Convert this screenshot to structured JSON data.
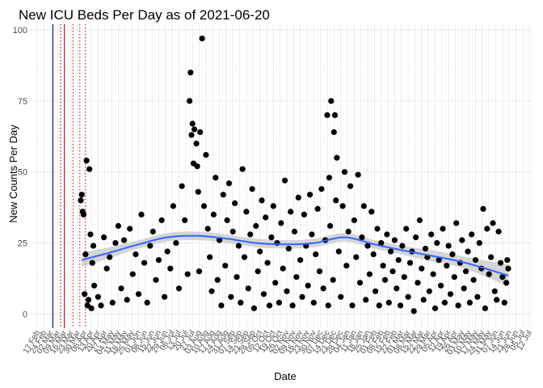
{
  "chart_data": {
    "type": "scatter",
    "title": "New ICU Beds Per Day as of 2021-06-20",
    "xlabel": "Date",
    "ylabel": "New Counts Per Day",
    "x_range": [
      "2020-02-10",
      "2021-07-16"
    ],
    "ylim": [
      -5,
      102
    ],
    "yticks": [
      0,
      25,
      50,
      75,
      100
    ],
    "grid": true,
    "legend": "none",
    "colors": {
      "points": "#000000",
      "smooth_line": "#3366ff",
      "ribbon": "#c8c8c8",
      "vline_blue": "#00008b",
      "vline_red": "#cc0000",
      "grid_major": "#ebebeb",
      "grid_minor": "#f4f4f4",
      "text": "#4d4d4d"
    },
    "x_tick_labels": [
      "17 Feb",
      "24 Feb",
      "02 Mar",
      "09 Mar",
      "16 Mar",
      "23 Mar",
      "30 Mar",
      "06 Apr",
      "13 Apr",
      "20 Apr",
      "27 Apr",
      "04 May",
      "11 May",
      "18 May",
      "25 May",
      "01 Jun",
      "08 Jun",
      "15 Jun",
      "22 Jun",
      "29 Jun",
      "06 Jul",
      "13 Jul",
      "20 Jul",
      "27 Jul",
      "03 Aug",
      "10 Aug",
      "17 Aug",
      "24 Aug",
      "31 Aug",
      "07 Sep",
      "14 Sep",
      "21 Sep",
      "28 Sep",
      "05 Oct",
      "12 Oct",
      "19 Oct",
      "26 Oct",
      "02 Nov",
      "09 Nov",
      "16 Nov",
      "23 Nov",
      "30 Nov",
      "07 Dec",
      "14 Dec",
      "21 Dec",
      "28 Dec",
      "04 Jan",
      "11 Jan",
      "18 Jan",
      "25 Jan",
      "01 Feb",
      "08 Feb",
      "15 Feb",
      "22 Feb",
      "01 Mar",
      "08 Mar",
      "15 Mar",
      "22 Mar",
      "29 Mar",
      "05 Apr",
      "12 Apr",
      "19 Apr",
      "26 Apr",
      "03 May",
      "10 May",
      "17 May",
      "24 May",
      "31 May",
      "07 Jun",
      "14 Jun",
      "21 Jun",
      "28 Jun",
      "05 Jul",
      "12 Jul"
    ],
    "vertical_lines": [
      {
        "date": "2020-03-04",
        "style": "solid",
        "color": "#00008b"
      },
      {
        "date": "2020-03-12",
        "style": "dotted",
        "color": "#00008b"
      },
      {
        "date": "2020-03-16",
        "style": "solid",
        "color": "#cc0000"
      },
      {
        "date": "2020-03-25",
        "style": "dotted",
        "color": "#cc0000"
      },
      {
        "date": "2020-04-01",
        "style": "dotted",
        "color": "#cc0000"
      },
      {
        "date": "2020-04-07",
        "style": "dotted",
        "color": "#cc0000"
      }
    ],
    "smooth": {
      "x": [
        "2020-04-03",
        "2020-05-01",
        "2020-06-01",
        "2020-07-01",
        "2020-08-01",
        "2020-09-01",
        "2020-10-01",
        "2020-11-01",
        "2020-12-01",
        "2021-01-01",
        "2021-02-01",
        "2021-03-01",
        "2021-04-01",
        "2021-05-01",
        "2021-06-01",
        "2021-06-20"
      ],
      "y": [
        19,
        21.5,
        24.5,
        27,
        27.5,
        26.5,
        25,
        24.5,
        25,
        27,
        24.5,
        22.5,
        20.5,
        18.5,
        15.5,
        13.5
      ],
      "lower": [
        16.5,
        19.5,
        23,
        25.5,
        26,
        25,
        23.5,
        23,
        23.5,
        25.5,
        23,
        21,
        18.5,
        16.5,
        12.5,
        9.5
      ],
      "upper": [
        21.5,
        23.5,
        26,
        28.5,
        29,
        28,
        26.5,
        26,
        26.5,
        28.5,
        26,
        24,
        22.5,
        20.5,
        18.5,
        17.5
      ]
    },
    "points": [
      [
        "2020-04-02",
        40
      ],
      [
        "2020-04-03",
        42
      ],
      [
        "2020-04-04",
        36
      ],
      [
        "2020-04-05",
        35
      ],
      [
        "2020-04-06",
        7
      ],
      [
        "2020-04-07",
        21
      ],
      [
        "2020-04-08",
        54
      ],
      [
        "2020-04-09",
        3
      ],
      [
        "2020-04-10",
        5
      ],
      [
        "2020-04-11",
        51
      ],
      [
        "2020-04-12",
        28
      ],
      [
        "2020-04-13",
        2
      ],
      [
        "2020-04-14",
        18
      ],
      [
        "2020-04-15",
        24
      ],
      [
        "2020-04-16",
        10
      ],
      [
        "2020-04-20",
        6
      ],
      [
        "2020-04-23",
        3
      ],
      [
        "2020-04-26",
        27
      ],
      [
        "2020-04-29",
        16
      ],
      [
        "2020-05-02",
        20
      ],
      [
        "2020-05-05",
        4
      ],
      [
        "2020-05-08",
        25
      ],
      [
        "2020-05-11",
        31
      ],
      [
        "2020-05-14",
        9
      ],
      [
        "2020-05-17",
        26
      ],
      [
        "2020-05-20",
        5
      ],
      [
        "2020-05-23",
        30
      ],
      [
        "2020-05-26",
        14
      ],
      [
        "2020-05-29",
        21
      ],
      [
        "2020-06-01",
        7
      ],
      [
        "2020-06-04",
        35
      ],
      [
        "2020-06-07",
        18
      ],
      [
        "2020-06-10",
        4
      ],
      [
        "2020-06-13",
        24
      ],
      [
        "2020-06-16",
        29
      ],
      [
        "2020-06-19",
        12
      ],
      [
        "2020-06-22",
        19
      ],
      [
        "2020-06-25",
        33
      ],
      [
        "2020-06-28",
        6
      ],
      [
        "2020-07-01",
        22
      ],
      [
        "2020-07-04",
        16
      ],
      [
        "2020-07-07",
        38
      ],
      [
        "2020-07-10",
        25
      ],
      [
        "2020-07-13",
        9
      ],
      [
        "2020-07-16",
        45
      ],
      [
        "2020-07-19",
        33
      ],
      [
        "2020-07-22",
        14
      ],
      [
        "2020-07-24",
        75
      ],
      [
        "2020-07-25",
        85
      ],
      [
        "2020-07-26",
        63
      ],
      [
        "2020-07-27",
        67
      ],
      [
        "2020-07-28",
        53
      ],
      [
        "2020-07-29",
        65
      ],
      [
        "2020-07-31",
        60
      ],
      [
        "2020-08-01",
        52
      ],
      [
        "2020-08-02",
        43
      ],
      [
        "2020-08-03",
        15
      ],
      [
        "2020-08-04",
        64
      ],
      [
        "2020-08-06",
        97
      ],
      [
        "2020-08-08",
        38
      ],
      [
        "2020-08-10",
        56
      ],
      [
        "2020-08-12",
        30
      ],
      [
        "2020-08-14",
        20
      ],
      [
        "2020-08-16",
        8
      ],
      [
        "2020-08-18",
        35
      ],
      [
        "2020-08-20",
        48
      ],
      [
        "2020-08-22",
        12
      ],
      [
        "2020-08-24",
        26
      ],
      [
        "2020-08-26",
        3
      ],
      [
        "2020-08-28",
        42
      ],
      [
        "2020-08-30",
        17
      ],
      [
        "2020-09-01",
        33
      ],
      [
        "2020-09-03",
        46
      ],
      [
        "2020-09-05",
        6
      ],
      [
        "2020-09-07",
        29
      ],
      [
        "2020-09-09",
        39
      ],
      [
        "2020-09-11",
        13
      ],
      [
        "2020-09-13",
        24
      ],
      [
        "2020-09-15",
        4
      ],
      [
        "2020-09-17",
        51
      ],
      [
        "2020-09-19",
        20
      ],
      [
        "2020-09-21",
        36
      ],
      [
        "2020-09-23",
        9
      ],
      [
        "2020-09-25",
        28
      ],
      [
        "2020-09-27",
        44
      ],
      [
        "2020-09-29",
        2
      ],
      [
        "2020-10-01",
        31
      ],
      [
        "2020-10-03",
        15
      ],
      [
        "2020-10-05",
        22
      ],
      [
        "2020-10-07",
        40
      ],
      [
        "2020-10-09",
        7
      ],
      [
        "2020-10-11",
        34
      ],
      [
        "2020-10-13",
        18
      ],
      [
        "2020-10-15",
        3
      ],
      [
        "2020-10-17",
        27
      ],
      [
        "2020-10-19",
        38
      ],
      [
        "2020-10-21",
        11
      ],
      [
        "2020-10-23",
        25
      ],
      [
        "2020-10-25",
        4
      ],
      [
        "2020-10-27",
        32
      ],
      [
        "2020-10-29",
        16
      ],
      [
        "2020-10-31",
        47
      ],
      [
        "2020-11-02",
        8
      ],
      [
        "2020-11-04",
        23
      ],
      [
        "2020-11-06",
        36
      ],
      [
        "2020-11-08",
        3
      ],
      [
        "2020-11-10",
        29
      ],
      [
        "2020-11-12",
        13
      ],
      [
        "2020-11-14",
        41
      ],
      [
        "2020-11-16",
        19
      ],
      [
        "2020-11-18",
        6
      ],
      [
        "2020-11-20",
        35
      ],
      [
        "2020-11-22",
        24
      ],
      [
        "2020-11-24",
        10
      ],
      [
        "2020-11-26",
        42
      ],
      [
        "2020-11-28",
        28
      ],
      [
        "2020-11-30",
        4
      ],
      [
        "2020-12-02",
        21
      ],
      [
        "2020-12-04",
        37
      ],
      [
        "2020-12-06",
        15
      ],
      [
        "2020-12-08",
        44
      ],
      [
        "2020-12-10",
        9
      ],
      [
        "2020-12-12",
        26
      ],
      [
        "2020-12-14",
        70
      ],
      [
        "2020-12-15",
        3
      ],
      [
        "2020-12-16",
        48
      ],
      [
        "2020-12-17",
        31
      ],
      [
        "2020-12-18",
        75
      ],
      [
        "2020-12-20",
        12
      ],
      [
        "2020-12-21",
        64
      ],
      [
        "2020-12-22",
        70
      ],
      [
        "2020-12-23",
        40
      ],
      [
        "2020-12-24",
        55
      ],
      [
        "2020-12-26",
        22
      ],
      [
        "2020-12-28",
        6
      ],
      [
        "2020-12-30",
        38
      ],
      [
        "2021-01-01",
        50
      ],
      [
        "2021-01-03",
        17
      ],
      [
        "2021-01-05",
        29
      ],
      [
        "2021-01-07",
        45
      ],
      [
        "2021-01-09",
        3
      ],
      [
        "2021-01-11",
        33
      ],
      [
        "2021-01-13",
        20
      ],
      [
        "2021-01-15",
        49
      ],
      [
        "2021-01-17",
        11
      ],
      [
        "2021-01-19",
        27
      ],
      [
        "2021-01-21",
        38
      ],
      [
        "2021-01-23",
        5
      ],
      [
        "2021-01-25",
        24
      ],
      [
        "2021-01-27",
        14
      ],
      [
        "2021-01-29",
        36
      ],
      [
        "2021-01-31",
        21
      ],
      [
        "2021-02-02",
        8
      ],
      [
        "2021-02-04",
        30
      ],
      [
        "2021-02-06",
        3
      ],
      [
        "2021-02-08",
        25
      ],
      [
        "2021-02-10",
        17
      ],
      [
        "2021-02-12",
        12
      ],
      [
        "2021-02-14",
        28
      ],
      [
        "2021-02-16",
        4
      ],
      [
        "2021-02-18",
        22
      ],
      [
        "2021-02-20",
        15
      ],
      [
        "2021-02-22",
        26
      ],
      [
        "2021-02-24",
        9
      ],
      [
        "2021-02-26",
        19
      ],
      [
        "2021-02-28",
        3
      ],
      [
        "2021-03-02",
        24
      ],
      [
        "2021-03-04",
        13
      ],
      [
        "2021-03-06",
        30
      ],
      [
        "2021-03-08",
        6
      ],
      [
        "2021-03-10",
        18
      ],
      [
        "2021-03-12",
        22
      ],
      [
        "2021-03-14",
        1
      ],
      [
        "2021-03-16",
        27
      ],
      [
        "2021-03-18",
        11
      ],
      [
        "2021-03-20",
        33
      ],
      [
        "2021-03-22",
        16
      ],
      [
        "2021-03-24",
        5
      ],
      [
        "2021-03-26",
        23
      ],
      [
        "2021-03-28",
        20
      ],
      [
        "2021-03-30",
        8
      ],
      [
        "2021-04-01",
        28
      ],
      [
        "2021-04-03",
        14
      ],
      [
        "2021-04-05",
        2
      ],
      [
        "2021-04-07",
        25
      ],
      [
        "2021-04-09",
        19
      ],
      [
        "2021-04-11",
        10
      ],
      [
        "2021-04-13",
        30
      ],
      [
        "2021-04-15",
        4
      ],
      [
        "2021-04-17",
        17
      ],
      [
        "2021-04-19",
        24
      ],
      [
        "2021-04-21",
        7
      ],
      [
        "2021-04-23",
        21
      ],
      [
        "2021-04-25",
        13
      ],
      [
        "2021-04-27",
        32
      ],
      [
        "2021-04-29",
        3
      ],
      [
        "2021-05-01",
        18
      ],
      [
        "2021-05-03",
        26
      ],
      [
        "2021-05-05",
        9
      ],
      [
        "2021-05-07",
        15
      ],
      [
        "2021-05-09",
        22
      ],
      [
        "2021-05-11",
        4
      ],
      [
        "2021-05-13",
        28
      ],
      [
        "2021-05-15",
        12
      ],
      [
        "2021-05-17",
        19
      ],
      [
        "2021-05-19",
        6
      ],
      [
        "2021-05-21",
        25
      ],
      [
        "2021-05-23",
        16
      ],
      [
        "2021-05-25",
        37
      ],
      [
        "2021-05-27",
        2
      ],
      [
        "2021-05-29",
        30
      ],
      [
        "2021-05-31",
        14
      ],
      [
        "2021-06-02",
        20
      ],
      [
        "2021-06-04",
        32
      ],
      [
        "2021-06-06",
        8
      ],
      [
        "2021-06-08",
        5
      ],
      [
        "2021-06-10",
        29
      ],
      [
        "2021-06-12",
        18
      ],
      [
        "2021-06-14",
        13
      ],
      [
        "2021-06-16",
        4
      ],
      [
        "2021-06-18",
        11
      ],
      [
        "2021-06-19",
        19
      ],
      [
        "2021-06-20",
        16
      ]
    ]
  }
}
